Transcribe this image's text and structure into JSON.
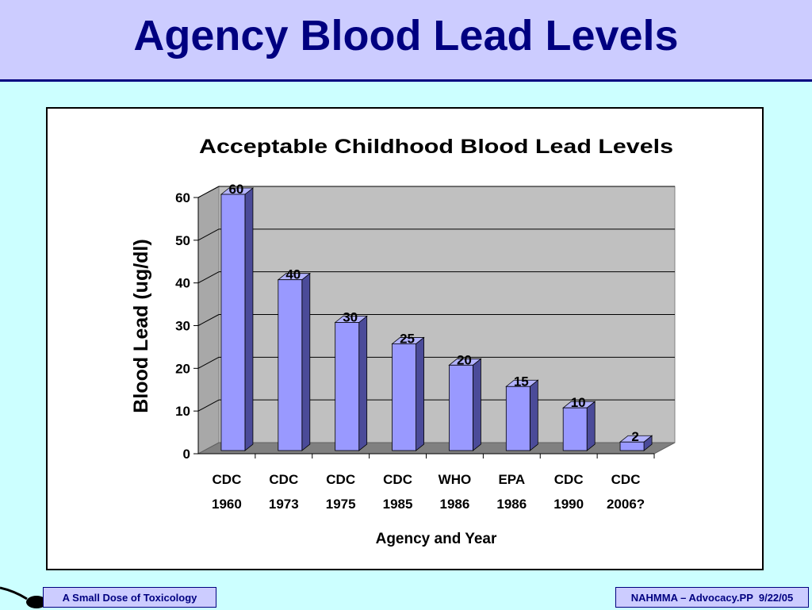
{
  "slide": {
    "title": "Agency Blood Lead Levels",
    "footer_left": "A Small Dose of Toxicology",
    "footer_right": "NAHMMA – Advocacy.PP  9/22/05",
    "icons": [
      "spoon-icon"
    ]
  },
  "chart_data": {
    "type": "bar",
    "style": "3d",
    "title": "Acceptable Childhood Blood Lead Levels",
    "xlabel": "Agency and Year",
    "ylabel": "Blood Lead (ug/dl)",
    "categories": [
      [
        "CDC",
        "1960"
      ],
      [
        "CDC",
        "1973"
      ],
      [
        "CDC",
        "1975"
      ],
      [
        "CDC",
        "1985"
      ],
      [
        "WHO",
        "1986"
      ],
      [
        "EPA",
        "1986"
      ],
      [
        "CDC",
        "1990"
      ],
      [
        "CDC",
        "2006?"
      ]
    ],
    "values": [
      60,
      40,
      30,
      25,
      20,
      15,
      10,
      2
    ],
    "data_labels": [
      "60",
      "40",
      "30",
      "25",
      "20",
      "15",
      "10",
      "2"
    ],
    "ylim": [
      0,
      60
    ],
    "yticks": [
      "0",
      "10",
      "20",
      "30",
      "40",
      "50",
      "60"
    ],
    "grid": true,
    "colors": {
      "bar_front": "#9999ff",
      "bar_side": "#4b4b99",
      "bar_top": "#b3b3ff",
      "wall": "#c0c0c0",
      "floor": "#808080"
    }
  }
}
